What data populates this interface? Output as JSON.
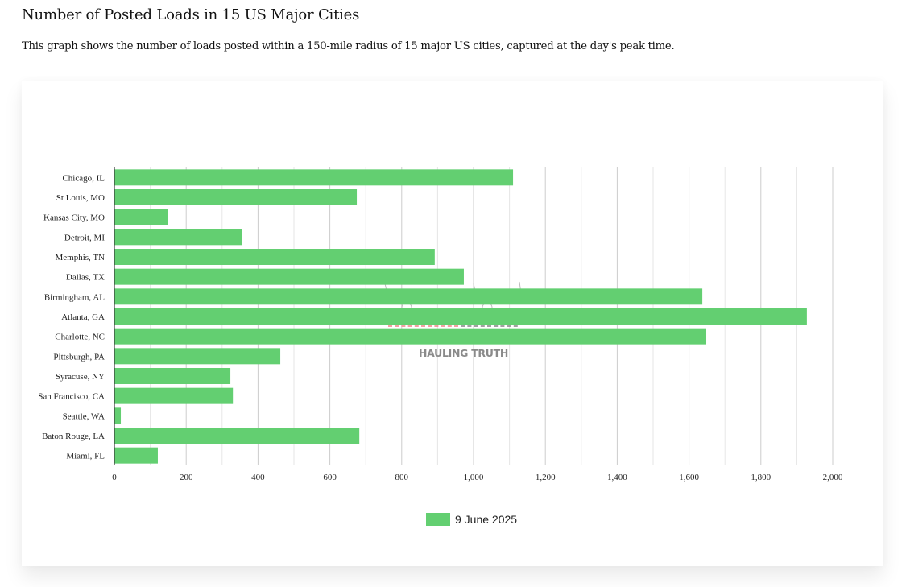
{
  "page": {
    "title": "Number of Posted Loads in 15 US Major Cities",
    "description": "This graph shows the number of loads posted within a 150-mile radius of 15 major US cities, captured at the day's peak time."
  },
  "watermark": {
    "text": "HAULING TRUTH"
  },
  "colors": {
    "bar": "#63cf71",
    "grid_major": "#cccccc",
    "grid_minor": "#e6e6e6",
    "axis": "#333333",
    "watermark_red": "#f08a8a",
    "watermark_gray": "#8a8a8a"
  },
  "chart_data": {
    "type": "bar",
    "orientation": "horizontal",
    "title": "Number of Posted Loads in 15 US Major Cities",
    "xlabel": "",
    "ylabel": "",
    "categories": [
      "Chicago, IL",
      "St Louis, MO",
      "Kansas City, MO",
      "Detroit, MI",
      "Memphis, TN",
      "Dallas, TX",
      "Birmingham, AL",
      "Atlanta, GA",
      "Charlotte, NC",
      "Pittsburgh, PA",
      "Syracuse, NY",
      "San Francisco, CA",
      "Seattle, WA",
      "Baton Rouge, LA",
      "Miami, FL"
    ],
    "series": [
      {
        "name": "9 June 2025",
        "values": [
          1110,
          675,
          148,
          356,
          892,
          973,
          1637,
          1928,
          1648,
          462,
          323,
          330,
          18,
          682,
          121
        ]
      }
    ],
    "xlim": [
      0,
      2000
    ],
    "xticks": [
      0,
      200,
      400,
      600,
      800,
      1000,
      1200,
      1400,
      1600,
      1800,
      2000
    ],
    "xtick_labels": [
      "0",
      "200",
      "400",
      "600",
      "800",
      "1,000",
      "1,200",
      "1,400",
      "1,600",
      "1,800",
      "2,000"
    ],
    "minor_step": 100,
    "grid": true,
    "legend": {
      "entries": [
        "9 June 2025"
      ],
      "position": "bottom"
    }
  }
}
